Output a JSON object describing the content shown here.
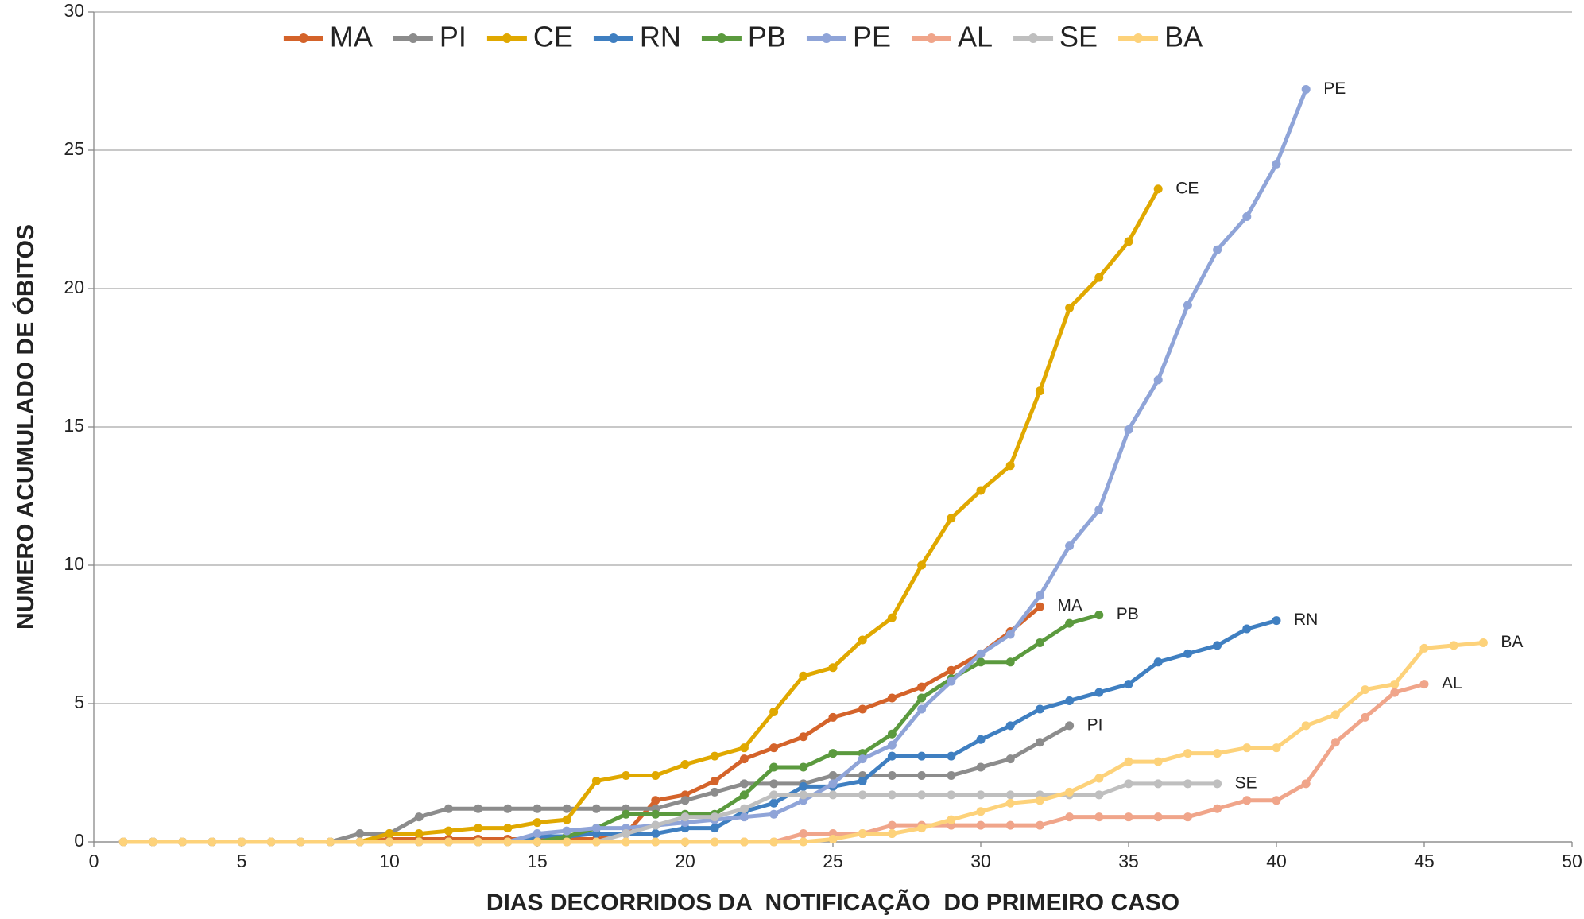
{
  "chart_data": {
    "type": "line",
    "x_label": "DIAS DECORRIDOS DA  NOTIFICAÇÃO  DO PRIMEIRO CASO",
    "y_label": "NUMERO ACUMULADO DE ÓBITOS",
    "x": [
      1,
      2,
      3,
      4,
      5,
      6,
      7,
      8,
      9,
      10,
      11,
      12,
      13,
      14,
      15,
      16,
      17,
      18,
      19,
      20,
      21,
      22,
      23,
      24,
      25,
      26,
      27,
      28,
      29,
      30,
      31,
      32,
      33,
      34,
      35,
      36,
      37,
      38,
      39,
      40,
      41,
      42,
      43,
      44,
      45,
      46,
      47
    ],
    "xlim": [
      0,
      50
    ],
    "xticks": [
      0,
      5,
      10,
      15,
      20,
      25,
      30,
      35,
      40,
      45,
      50
    ],
    "ylim": [
      0,
      30
    ],
    "yticks": [
      0,
      5,
      10,
      15,
      20,
      25,
      30
    ],
    "grid": true,
    "legend": "top",
    "series": [
      {
        "name": "MA",
        "color": "#d4632a",
        "values": [
          0,
          0,
          0,
          0,
          0,
          0,
          0,
          0,
          0,
          0.1,
          0.1,
          0.1,
          0.1,
          0.1,
          0.1,
          0.1,
          0.1,
          0.3,
          1.5,
          1.7,
          2.2,
          3.0,
          3.4,
          3.8,
          4.5,
          4.8,
          5.2,
          5.6,
          6.2,
          6.8,
          7.6,
          8.5,
          null,
          null,
          null,
          null,
          null,
          null,
          null,
          null,
          null,
          null,
          null,
          null,
          null,
          null,
          null
        ]
      },
      {
        "name": "PI",
        "color": "#8c8c8c",
        "values": [
          0,
          0,
          0,
          0,
          0,
          0,
          0,
          0,
          0.3,
          0.3,
          0.9,
          1.2,
          1.2,
          1.2,
          1.2,
          1.2,
          1.2,
          1.2,
          1.2,
          1.5,
          1.8,
          2.1,
          2.1,
          2.1,
          2.4,
          2.4,
          2.4,
          2.4,
          2.4,
          2.7,
          3.0,
          3.6,
          4.2,
          null,
          null,
          null,
          null,
          null,
          null,
          null,
          null,
          null,
          null,
          null,
          null,
          null,
          null
        ]
      },
      {
        "name": "CE",
        "color": "#e0a800",
        "values": [
          0,
          0,
          0,
          0,
          0,
          0,
          0,
          0,
          0,
          0.3,
          0.3,
          0.4,
          0.5,
          0.5,
          0.7,
          0.8,
          2.2,
          2.4,
          2.4,
          2.8,
          3.1,
          3.4,
          4.7,
          6.0,
          6.3,
          7.3,
          8.1,
          10.0,
          11.7,
          12.7,
          13.6,
          16.3,
          19.3,
          20.4,
          21.7,
          23.6,
          null,
          null,
          null,
          null,
          null,
          null,
          null,
          null,
          null,
          null,
          null
        ]
      },
      {
        "name": "RN",
        "color": "#3f7fc1",
        "values": [
          0,
          0,
          0,
          0,
          0,
          0,
          0,
          0,
          0,
          0,
          0,
          0,
          0,
          0,
          0.2,
          0.2,
          0.3,
          0.3,
          0.3,
          0.5,
          0.5,
          1.1,
          1.4,
          2.0,
          2.0,
          2.2,
          3.1,
          3.1,
          3.1,
          3.7,
          4.2,
          4.8,
          5.1,
          5.4,
          5.7,
          6.5,
          6.8,
          7.1,
          7.7,
          8.0,
          null,
          null,
          null,
          null,
          null,
          null,
          null
        ]
      },
      {
        "name": "PB",
        "color": "#5b9a3e",
        "values": [
          0,
          0,
          0,
          0,
          0,
          0,
          0,
          0,
          0,
          0,
          0,
          0,
          0,
          0,
          0,
          0.2,
          0.5,
          1.0,
          1.0,
          1.0,
          1.0,
          1.7,
          2.7,
          2.7,
          3.2,
          3.2,
          3.9,
          5.2,
          5.9,
          6.5,
          6.5,
          7.2,
          7.9,
          8.2,
          null,
          null,
          null,
          null,
          null,
          null,
          null,
          null,
          null,
          null,
          null,
          null,
          null
        ]
      },
      {
        "name": "PE",
        "color": "#8fa4d8",
        "values": [
          0,
          0,
          0,
          0,
          0,
          0,
          0,
          0,
          0,
          0,
          0,
          0,
          0,
          0,
          0.3,
          0.4,
          0.5,
          0.5,
          0.6,
          0.7,
          0.8,
          0.9,
          1.0,
          1.5,
          2.1,
          3.0,
          3.5,
          4.8,
          5.8,
          6.8,
          7.5,
          8.9,
          10.7,
          12.0,
          14.9,
          16.7,
          19.4,
          21.4,
          22.6,
          24.5,
          27.2,
          null,
          null,
          null,
          null,
          null,
          null
        ]
      },
      {
        "name": "AL",
        "color": "#f0a58a",
        "values": [
          0,
          0,
          0,
          0,
          0,
          0,
          0,
          0,
          0,
          0,
          0,
          0,
          0,
          0,
          0,
          0,
          0,
          0,
          0,
          0,
          0,
          0,
          0,
          0.3,
          0.3,
          0.3,
          0.6,
          0.6,
          0.6,
          0.6,
          0.6,
          0.6,
          0.9,
          0.9,
          0.9,
          0.9,
          0.9,
          1.2,
          1.5,
          1.5,
          2.1,
          3.6,
          4.5,
          5.4,
          5.7,
          null,
          null
        ]
      },
      {
        "name": "SE",
        "color": "#bfbfbf",
        "values": [
          0,
          0,
          0,
          0,
          0,
          0,
          0,
          0,
          0,
          0,
          0,
          0,
          0,
          0,
          0,
          0,
          0,
          0.3,
          0.6,
          0.9,
          0.9,
          1.2,
          1.7,
          1.7,
          1.7,
          1.7,
          1.7,
          1.7,
          1.7,
          1.7,
          1.7,
          1.7,
          1.7,
          1.7,
          2.1,
          2.1,
          2.1,
          2.1,
          null,
          null,
          null,
          null,
          null,
          null,
          null,
          null,
          null
        ]
      },
      {
        "name": "BA",
        "color": "#fdd27a",
        "values": [
          0,
          0,
          0,
          0,
          0,
          0,
          0,
          0,
          0,
          0,
          0,
          0,
          0,
          0,
          0,
          0,
          0,
          0,
          0,
          0,
          0,
          0,
          0,
          0,
          0.1,
          0.3,
          0.3,
          0.5,
          0.8,
          1.1,
          1.4,
          1.5,
          1.8,
          2.3,
          2.9,
          2.9,
          3.2,
          3.2,
          3.4,
          3.4,
          4.2,
          4.6,
          5.5,
          5.7,
          7.0,
          7.1,
          7.2
        ]
      }
    ]
  }
}
